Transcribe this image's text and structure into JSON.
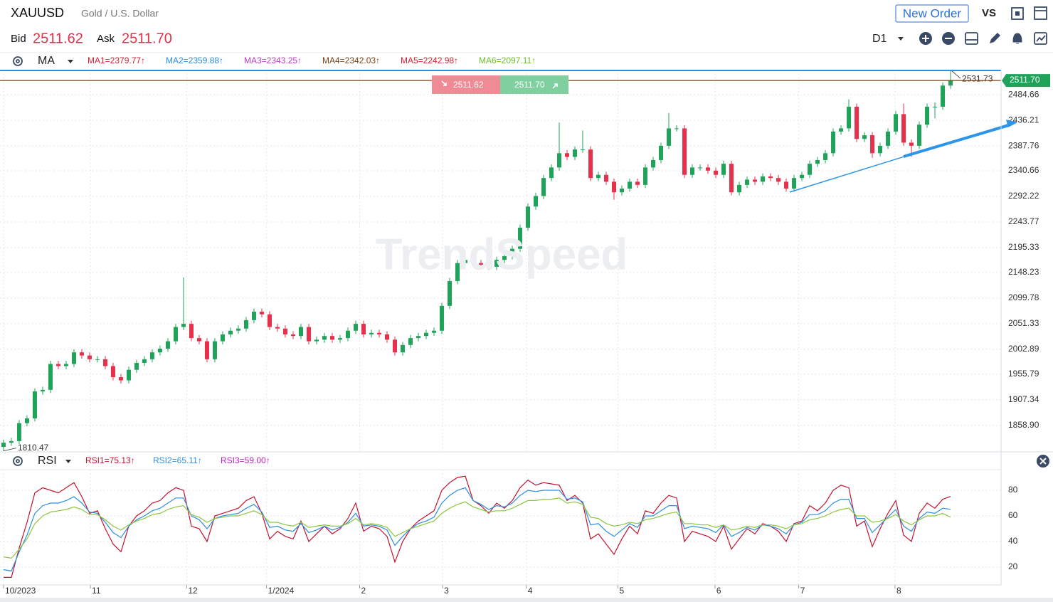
{
  "header": {
    "symbol": "XAUUSD",
    "name": "Gold / U.S. Dollar",
    "new_order": "New Order",
    "vs": "VS",
    "bid_label": "Bid",
    "bid": "2511.62",
    "ask_label": "Ask",
    "ask": "2511.70",
    "timeframe": "D1",
    "watermark": "TrendSpeed"
  },
  "chart_data": [
    {
      "type": "candlestick",
      "indicator": "MA",
      "ma_legend": [
        {
          "label": "MA1=2379.77↑",
          "color": "#d42030"
        },
        {
          "label": "MA2=2359.88↑",
          "color": "#2a8ce0"
        },
        {
          "label": "MA3=2343.25↑",
          "color": "#c03ac8"
        },
        {
          "label": "MA4=2342.03↑",
          "color": "#7a4316"
        },
        {
          "label": "MA5=2242.98↑",
          "color": "#d42030"
        },
        {
          "label": "MA6=2097.11↑",
          "color": "#6cbf2a"
        }
      ],
      "up_color": "#1fa35a",
      "down_color": "#e8304b",
      "grid": true,
      "x": [
        0,
        1,
        2,
        3,
        4,
        5,
        6,
        7,
        8,
        9,
        10,
        11,
        12,
        13,
        14,
        15,
        16,
        17,
        18,
        19,
        20,
        21,
        22,
        23,
        24,
        25,
        26,
        27,
        28,
        29,
        30,
        31,
        32,
        33,
        34,
        35,
        36,
        37,
        38,
        39,
        40,
        41,
        42,
        43,
        44,
        45,
        46,
        47,
        48,
        49,
        50,
        51,
        52,
        53,
        54,
        55,
        56,
        57,
        58,
        59,
        60,
        61,
        62,
        63,
        64,
        65,
        66,
        67,
        68,
        69,
        70,
        71,
        72,
        73,
        74,
        75,
        76,
        77,
        78,
        79,
        80,
        81,
        82,
        83,
        84,
        85,
        86,
        87,
        88,
        89,
        90,
        91,
        92,
        93,
        94,
        95,
        96,
        97,
        98,
        99,
        100,
        101,
        102,
        103,
        104,
        105,
        106,
        107,
        108,
        109,
        110,
        111,
        112,
        113,
        114,
        115,
        116,
        117,
        118,
        119,
        120,
        121
      ],
      "open": [
        1818,
        1826,
        1829,
        1863,
        1872,
        1923,
        1926,
        1975,
        1971,
        1975,
        1997,
        1991,
        1984,
        1984,
        1971,
        1950,
        1944,
        1964,
        1977,
        1984,
        1997,
        2004,
        2018,
        2045,
        2051,
        2024,
        2018,
        1984,
        2018,
        2031,
        2038,
        2042,
        2058,
        2074,
        2069,
        2045,
        2042,
        2031,
        2028,
        2045,
        2018,
        2021,
        2028,
        2021,
        2024,
        2038,
        2051,
        2031,
        2034,
        2031,
        2021,
        1997,
        2011,
        2024,
        2028,
        2034,
        2038,
        2085,
        2132,
        2166,
        2172,
        2166,
        2163,
        2159,
        2172,
        2179,
        2193,
        2233,
        2273,
        2293,
        2327,
        2347,
        2374,
        2367,
        2381,
        2381,
        2327,
        2333,
        2320,
        2300,
        2307,
        2320,
        2314,
        2347,
        2361,
        2388,
        2421,
        2421,
        2333,
        2347,
        2347,
        2341,
        2333,
        2354,
        2300,
        2314,
        2324,
        2320,
        2330,
        2327,
        2320,
        2307,
        2327,
        2333,
        2354,
        2361,
        2374,
        2415,
        2421,
        2462,
        2401,
        2408,
        2374,
        2388,
        2415,
        2448,
        2394,
        2388,
        2428,
        2462,
        2462,
        2502
      ],
      "high": [
        1832,
        1835,
        1869,
        1878,
        1929,
        1932,
        1981,
        1981,
        1981,
        2003,
        2003,
        1997,
        1990,
        1990,
        1977,
        1956,
        1970,
        1983,
        1990,
        2003,
        2010,
        2024,
        2051,
        2139,
        2057,
        2030,
        2024,
        2024,
        2037,
        2044,
        2048,
        2064,
        2080,
        2080,
        2075,
        2051,
        2048,
        2037,
        2051,
        2051,
        2027,
        2034,
        2034,
        2030,
        2044,
        2057,
        2057,
        2040,
        2040,
        2037,
        2027,
        2017,
        2030,
        2034,
        2040,
        2044,
        2091,
        2138,
        2172,
        2178,
        2178,
        2172,
        2169,
        2178,
        2185,
        2199,
        2239,
        2279,
        2299,
        2333,
        2353,
        2432,
        2380,
        2387,
        2417,
        2387,
        2339,
        2339,
        2326,
        2313,
        2326,
        2326,
        2353,
        2367,
        2394,
        2450,
        2427,
        2427,
        2353,
        2353,
        2353,
        2347,
        2360,
        2360,
        2320,
        2330,
        2330,
        2336,
        2336,
        2333,
        2326,
        2333,
        2339,
        2360,
        2367,
        2380,
        2421,
        2427,
        2476,
        2468,
        2414,
        2414,
        2394,
        2421,
        2454,
        2468,
        2400,
        2434,
        2468,
        2470,
        2508,
        2531.73
      ],
      "low": [
        1810.47,
        1820,
        1823,
        1857,
        1866,
        1917,
        1920,
        1965,
        1965,
        1969,
        1985,
        1978,
        1978,
        1965,
        1944,
        1938,
        1938,
        1958,
        1971,
        1978,
        1991,
        1998,
        2012,
        2039,
        2018,
        2012,
        1978,
        1978,
        2012,
        2025,
        2032,
        2036,
        2052,
        2063,
        2039,
        2036,
        2025,
        2022,
        2022,
        2012,
        2012,
        2015,
        2015,
        2015,
        2018,
        2032,
        2025,
        2025,
        2025,
        2015,
        1991,
        1991,
        2005,
        2018,
        2022,
        2028,
        2032,
        2079,
        2126,
        2160,
        2160,
        2157,
        2153,
        2153,
        2166,
        2173,
        2187,
        2227,
        2267,
        2287,
        2321,
        2341,
        2361,
        2361,
        2375,
        2321,
        2321,
        2314,
        2286,
        2294,
        2301,
        2308,
        2308,
        2341,
        2355,
        2382,
        2415,
        2327,
        2327,
        2341,
        2335,
        2327,
        2327,
        2294,
        2294,
        2308,
        2314,
        2314,
        2321,
        2314,
        2301,
        2301,
        2321,
        2327,
        2348,
        2355,
        2368,
        2409,
        2415,
        2395,
        2395,
        2365,
        2368,
        2382,
        2409,
        2388,
        2367,
        2382,
        2422,
        2440,
        2456,
        2496
      ],
      "close": [
        1826,
        1829,
        1863,
        1872,
        1923,
        1926,
        1975,
        1971,
        1975,
        1997,
        1991,
        1984,
        1984,
        1971,
        1950,
        1944,
        1964,
        1977,
        1984,
        1997,
        2004,
        2018,
        2045,
        2051,
        2024,
        2018,
        1984,
        2018,
        2031,
        2038,
        2042,
        2058,
        2074,
        2069,
        2045,
        2042,
        2031,
        2028,
        2045,
        2018,
        2021,
        2028,
        2021,
        2024,
        2038,
        2051,
        2031,
        2034,
        2031,
        2021,
        1997,
        2011,
        2024,
        2028,
        2034,
        2038,
        2085,
        2132,
        2166,
        2172,
        2166,
        2163,
        2159,
        2172,
        2179,
        2193,
        2233,
        2273,
        2293,
        2327,
        2347,
        2374,
        2367,
        2381,
        2381,
        2327,
        2333,
        2320,
        2300,
        2307,
        2320,
        2314,
        2347,
        2361,
        2388,
        2421,
        2421,
        2333,
        2347,
        2347,
        2341,
        2333,
        2354,
        2300,
        2314,
        2324,
        2320,
        2330,
        2327,
        2320,
        2307,
        2327,
        2333,
        2354,
        2361,
        2374,
        2415,
        2421,
        2462,
        2401,
        2408,
        2374,
        2388,
        2415,
        2448,
        2394,
        2388,
        2428,
        2462,
        2462,
        2502,
        2511.7
      ],
      "xlim": [
        -0.45,
        127.45
      ],
      "xticks": [
        {
          "value": 0,
          "label": "10/2023"
        },
        {
          "value": 11.1,
          "label": "11"
        },
        {
          "value": 23.4,
          "label": "12"
        },
        {
          "value": 33.6,
          "label": "1/2024"
        },
        {
          "value": 45.5,
          "label": "2"
        },
        {
          "value": 56.1,
          "label": "3"
        },
        {
          "value": 66.8,
          "label": "4"
        },
        {
          "value": 78.5,
          "label": "5"
        },
        {
          "value": 90.9,
          "label": "6"
        },
        {
          "value": 101.6,
          "label": "7"
        },
        {
          "value": 113.9,
          "label": "8"
        }
      ],
      "ylim": [
        1810,
        2532
      ],
      "yticks": [
        2484.66,
        2436.21,
        2387.76,
        2340.66,
        2292.22,
        2243.77,
        2195.33,
        2148.23,
        2099.78,
        2051.33,
        2002.89,
        1955.79,
        1907.34,
        {
          "value": 1858.9,
          "label": "1858.90"
        }
      ]
    },
    {
      "type": "line",
      "indicator": "RSI",
      "grid": true,
      "x": [
        0,
        1,
        2,
        3,
        4,
        5,
        6,
        7,
        8,
        9,
        10,
        11,
        12,
        13,
        14,
        15,
        16,
        17,
        18,
        19,
        20,
        21,
        22,
        23,
        24,
        25,
        26,
        27,
        28,
        29,
        30,
        31,
        32,
        33,
        34,
        35,
        36,
        37,
        38,
        39,
        40,
        41,
        42,
        43,
        44,
        45,
        46,
        47,
        48,
        49,
        50,
        51,
        52,
        53,
        54,
        55,
        56,
        57,
        58,
        59,
        60,
        61,
        62,
        63,
        64,
        65,
        66,
        67,
        68,
        69,
        70,
        71,
        72,
        73,
        74,
        75,
        76,
        77,
        78,
        79,
        80,
        81,
        82,
        83,
        84,
        85,
        86,
        87,
        88,
        89,
        90,
        91,
        92,
        93,
        94,
        95,
        96,
        97,
        98,
        99,
        100,
        101,
        102,
        103,
        104,
        105,
        106,
        107,
        108,
        109,
        110,
        111,
        112,
        113,
        114,
        115,
        116,
        117,
        118,
        119,
        120,
        121
      ],
      "series": [
        {
          "name": "RSI1=75.13↑",
          "color": "#c4122f",
          "legend_color": "#c4122f",
          "values": [
            12,
            12,
            35,
            55,
            78,
            82,
            80,
            78,
            82,
            86,
            75,
            62,
            64,
            50,
            38,
            32,
            52,
            60,
            64,
            70,
            72,
            78,
            82,
            80,
            52,
            50,
            40,
            60,
            62,
            64,
            66,
            72,
            75,
            62,
            42,
            48,
            44,
            42,
            56,
            40,
            46,
            52,
            46,
            50,
            58,
            70,
            48,
            52,
            50,
            44,
            24,
            40,
            50,
            56,
            60,
            64,
            80,
            86,
            90,
            91,
            72,
            68,
            62,
            70,
            66,
            72,
            82,
            88,
            84,
            86,
            85,
            84,
            72,
            76,
            70,
            42,
            46,
            38,
            30,
            42,
            52,
            46,
            64,
            62,
            70,
            76,
            74,
            40,
            48,
            46,
            44,
            40,
            52,
            34,
            42,
            50,
            46,
            54,
            52,
            48,
            40,
            54,
            56,
            68,
            64,
            70,
            80,
            84,
            82,
            52,
            56,
            36,
            50,
            62,
            72,
            45,
            40,
            62,
            70,
            66,
            73,
            75.13
          ]
        },
        {
          "name": "RSI2=65.11↑",
          "color": "#2d8fe0",
          "legend_color": "#2d8fe0",
          "values": [
            18,
            17,
            32,
            45,
            62,
            68,
            70,
            70,
            72,
            75,
            70,
            63,
            62,
            55,
            47,
            43,
            52,
            57,
            60,
            64,
            66,
            70,
            74,
            74,
            60,
            57,
            50,
            58,
            60,
            61,
            62,
            66,
            69,
            63,
            51,
            52,
            49,
            48,
            54,
            47,
            49,
            52,
            49,
            51,
            55,
            62,
            52,
            53,
            52,
            49,
            37,
            44,
            50,
            54,
            56,
            59,
            70,
            76,
            80,
            82,
            72,
            69,
            65,
            68,
            67,
            70,
            76,
            80,
            79,
            80,
            80,
            80,
            73,
            74,
            71,
            53,
            54,
            48,
            44,
            49,
            54,
            51,
            60,
            60,
            64,
            68,
            68,
            50,
            52,
            51,
            50,
            47,
            53,
            44,
            47,
            51,
            49,
            53,
            52,
            50,
            46,
            53,
            55,
            61,
            61,
            64,
            70,
            73,
            73,
            58,
            58,
            47,
            53,
            59,
            65,
            52,
            48,
            58,
            63,
            62,
            66,
            65.11
          ]
        },
        {
          "name": "RSI3=59.00↑",
          "color": "#8dc63f",
          "legend_color": "#c020c8",
          "values": [
            28,
            27,
            34,
            42,
            54,
            60,
            63,
            64,
            65,
            67,
            65,
            61,
            61,
            57,
            52,
            49,
            53,
            56,
            58,
            61,
            62,
            65,
            67,
            68,
            61,
            59,
            55,
            58,
            59,
            60,
            60,
            62,
            64,
            61,
            55,
            55,
            53,
            52,
            55,
            51,
            52,
            53,
            52,
            52,
            54,
            58,
            53,
            54,
            53,
            51,
            44,
            47,
            50,
            52,
            54,
            56,
            62,
            66,
            69,
            71,
            67,
            65,
            63,
            64,
            64,
            66,
            69,
            72,
            72,
            73,
            73,
            74,
            70,
            71,
            69,
            59,
            58,
            54,
            52,
            53,
            55,
            54,
            57,
            58,
            60,
            62,
            63,
            54,
            54,
            53,
            53,
            51,
            53,
            49,
            50,
            52,
            51,
            53,
            53,
            52,
            50,
            53,
            54,
            57,
            58,
            60,
            63,
            65,
            66,
            60,
            60,
            55,
            56,
            58,
            61,
            56,
            53,
            57,
            60,
            60,
            62,
            59
          ]
        }
      ],
      "xlim": [
        -0.45,
        127.45
      ],
      "ylim": [
        6.1,
        96.1
      ],
      "yticks": [
        80,
        60,
        40,
        20
      ]
    }
  ]
}
